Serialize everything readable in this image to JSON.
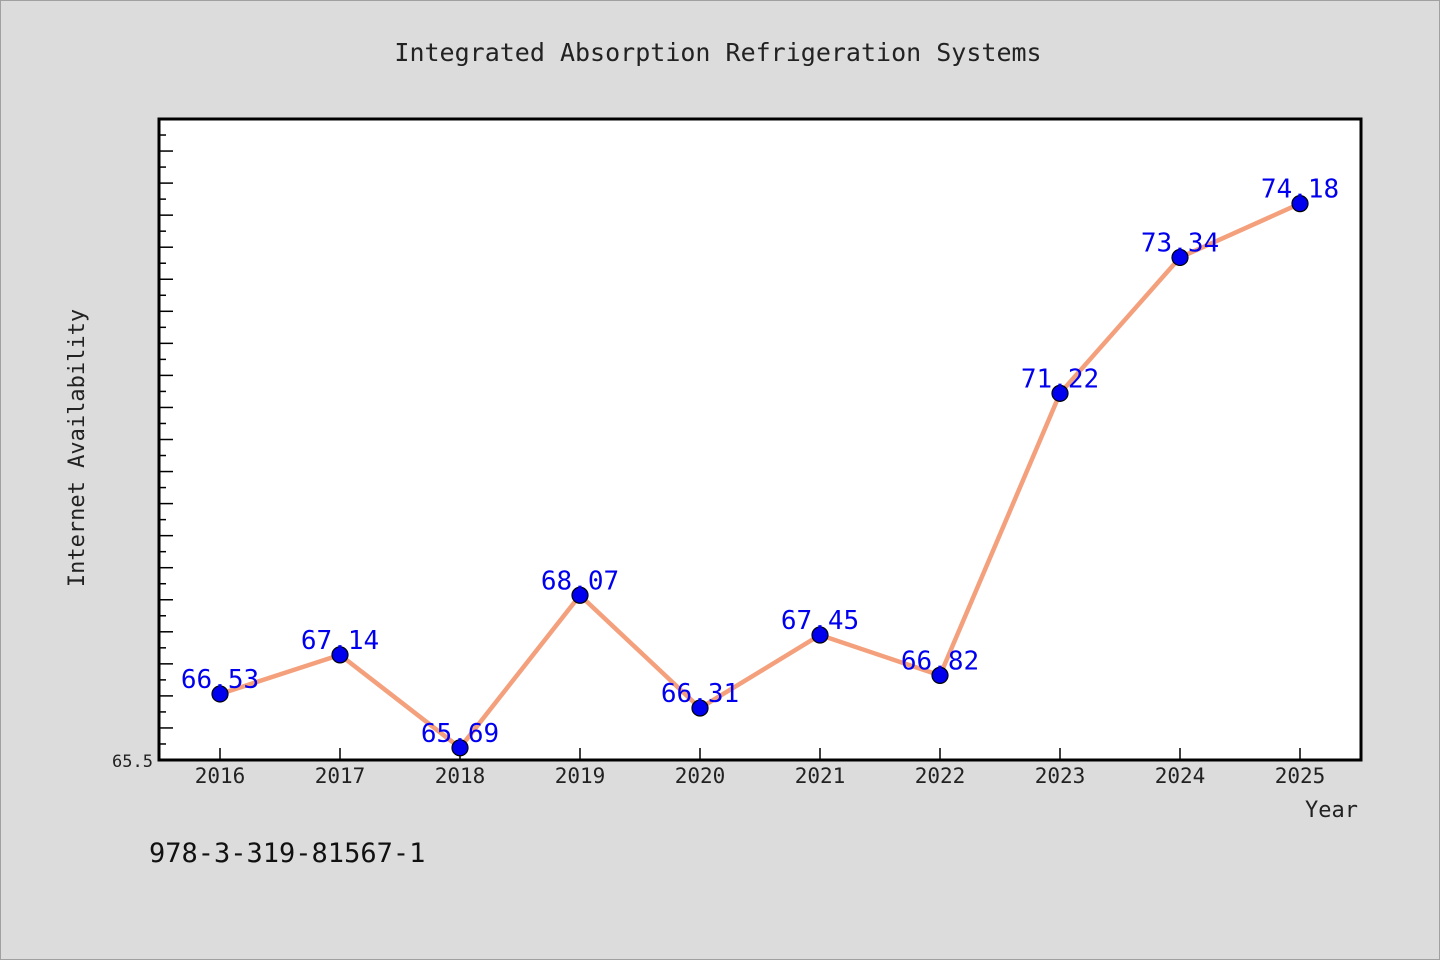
{
  "chart_data": {
    "type": "line",
    "title": "Integrated Absorption Refrigeration Systems",
    "xlabel": "Year",
    "ylabel": "Internet Availability",
    "categories": [
      "2016",
      "2017",
      "2018",
      "2019",
      "2020",
      "2021",
      "2022",
      "2023",
      "2024",
      "2025"
    ],
    "series": [
      {
        "values": [
          66.53,
          67.14,
          65.69,
          68.07,
          66.31,
          67.45,
          66.82,
          71.22,
          73.34,
          74.18
        ],
        "line_color": "#f4a07c",
        "marker_color": "#0000ee",
        "label_color": "#0000ee"
      }
    ],
    "data_labels": [
      "66.53",
      "67.14",
      "65.69",
      "68.07",
      "66.31",
      "67.45",
      "66.82",
      "71.22",
      "73.34",
      "74.18"
    ],
    "ylim": [
      65.5,
      75.5
    ],
    "y_tick_label": "65.5",
    "grid": false,
    "legend": "none",
    "annotation": "978-3-319-81567-1"
  }
}
